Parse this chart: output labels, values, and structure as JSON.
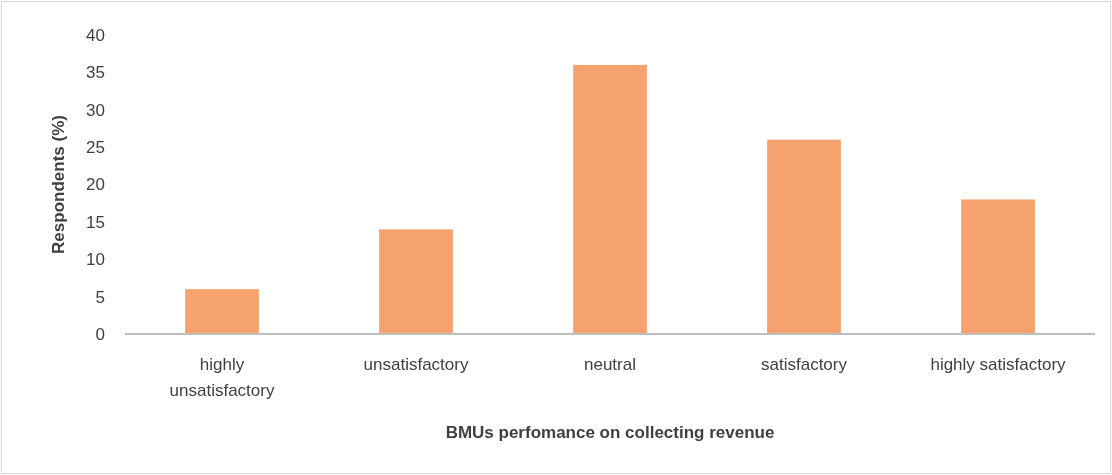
{
  "chart_data": {
    "type": "bar",
    "xlabel": "BMUs perfomance on collecting revenue",
    "ylabel": "Respondents (%)",
    "categories": [
      "highly unsatisfactory",
      "unsatisfactory",
      "neutral",
      "satisfactory",
      "highly satisfactory"
    ],
    "values": [
      6,
      14,
      36,
      26,
      18
    ],
    "color": "#f5a26e",
    "ylim": [
      0,
      40
    ],
    "yticks": [
      0,
      5,
      10,
      15,
      20,
      25,
      30,
      35,
      40
    ],
    "grid": false
  }
}
